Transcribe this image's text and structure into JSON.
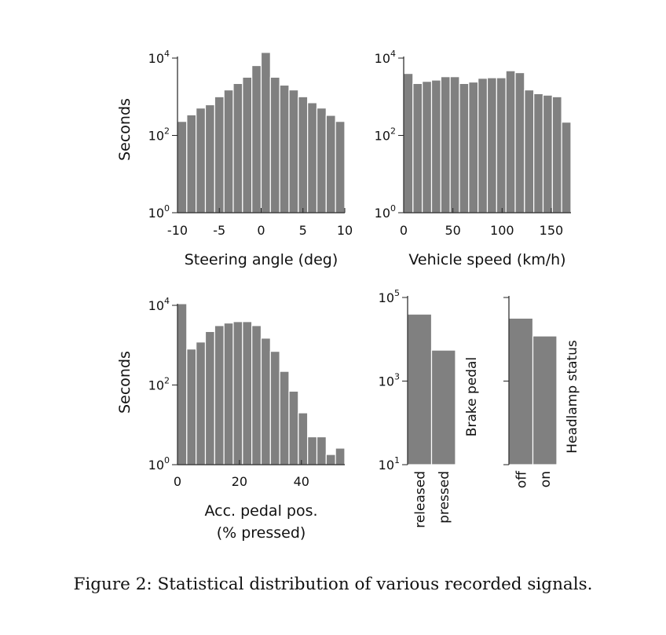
{
  "caption": "Figure 2: Statistical distribution of various recorded signals.",
  "colors": {
    "bar": "#808080",
    "axis": "#222222",
    "bar_edge": "#ffffff"
  },
  "chart_data": [
    {
      "type": "bar",
      "xlabel": [
        "Steering angle (deg)"
      ],
      "ylabel": "Seconds",
      "y_scale": "log",
      "y_ticks": [
        0,
        2,
        4
      ],
      "x_ticks": [
        -10,
        -5,
        0,
        5,
        10
      ],
      "x_tick_labels": [
        "-10",
        "-5",
        "0",
        "5",
        "10"
      ],
      "x_range": [
        -10,
        10
      ],
      "bin_width": 1.111,
      "values": [
        230,
        340,
        510,
        620,
        1000,
        1500,
        2200,
        3200,
        6400,
        14000,
        3200,
        2000,
        1500,
        1000,
        700,
        510,
        330,
        230
      ]
    },
    {
      "type": "bar",
      "xlabel": [
        "Vehicle speed (km/h)"
      ],
      "ylabel": "",
      "y_scale": "log",
      "y_ticks": [
        0,
        2,
        4
      ],
      "x_ticks": [
        0,
        50,
        100,
        150
      ],
      "x_tick_labels": [
        "0",
        "50",
        "100",
        "150"
      ],
      "x_range": [
        0,
        170
      ],
      "bin_width": 10,
      "values": [
        4000,
        2200,
        2500,
        2700,
        3300,
        3300,
        2200,
        2400,
        3000,
        3100,
        3100,
        4700,
        4200,
        1500,
        1200,
        1100,
        1000,
        220
      ]
    },
    {
      "type": "bar",
      "xlabel": [
        "Acc. pedal pos.",
        "(% pressed)"
      ],
      "ylabel": "Seconds",
      "y_scale": "log",
      "y_ticks": [
        0,
        2,
        4
      ],
      "x_ticks": [
        0,
        20,
        40
      ],
      "x_tick_labels": [
        "0",
        "20",
        "40"
      ],
      "x_range": [
        0,
        54
      ],
      "bin_width": 3,
      "values": [
        11000,
        800,
        1200,
        2200,
        3100,
        3600,
        3900,
        3900,
        3100,
        1500,
        700,
        220,
        70,
        20,
        5,
        5,
        1.8,
        2.6
      ]
    },
    {
      "type": "bar",
      "xlabel": [],
      "ylabel": "",
      "side_label": "Brake pedal",
      "y_scale": "log",
      "y_ticks": [
        1,
        3,
        5
      ],
      "categories": [
        "released",
        "pressed"
      ],
      "values": [
        40000,
        5500
      ]
    },
    {
      "type": "bar",
      "xlabel": [],
      "ylabel": "",
      "side_label": "Headlamp status",
      "y_scale": "log",
      "y_ticks": [
        1,
        3,
        5
      ],
      "tick_labels_visible": false,
      "categories": [
        "off",
        "on"
      ],
      "values": [
        32000,
        12000
      ]
    }
  ]
}
